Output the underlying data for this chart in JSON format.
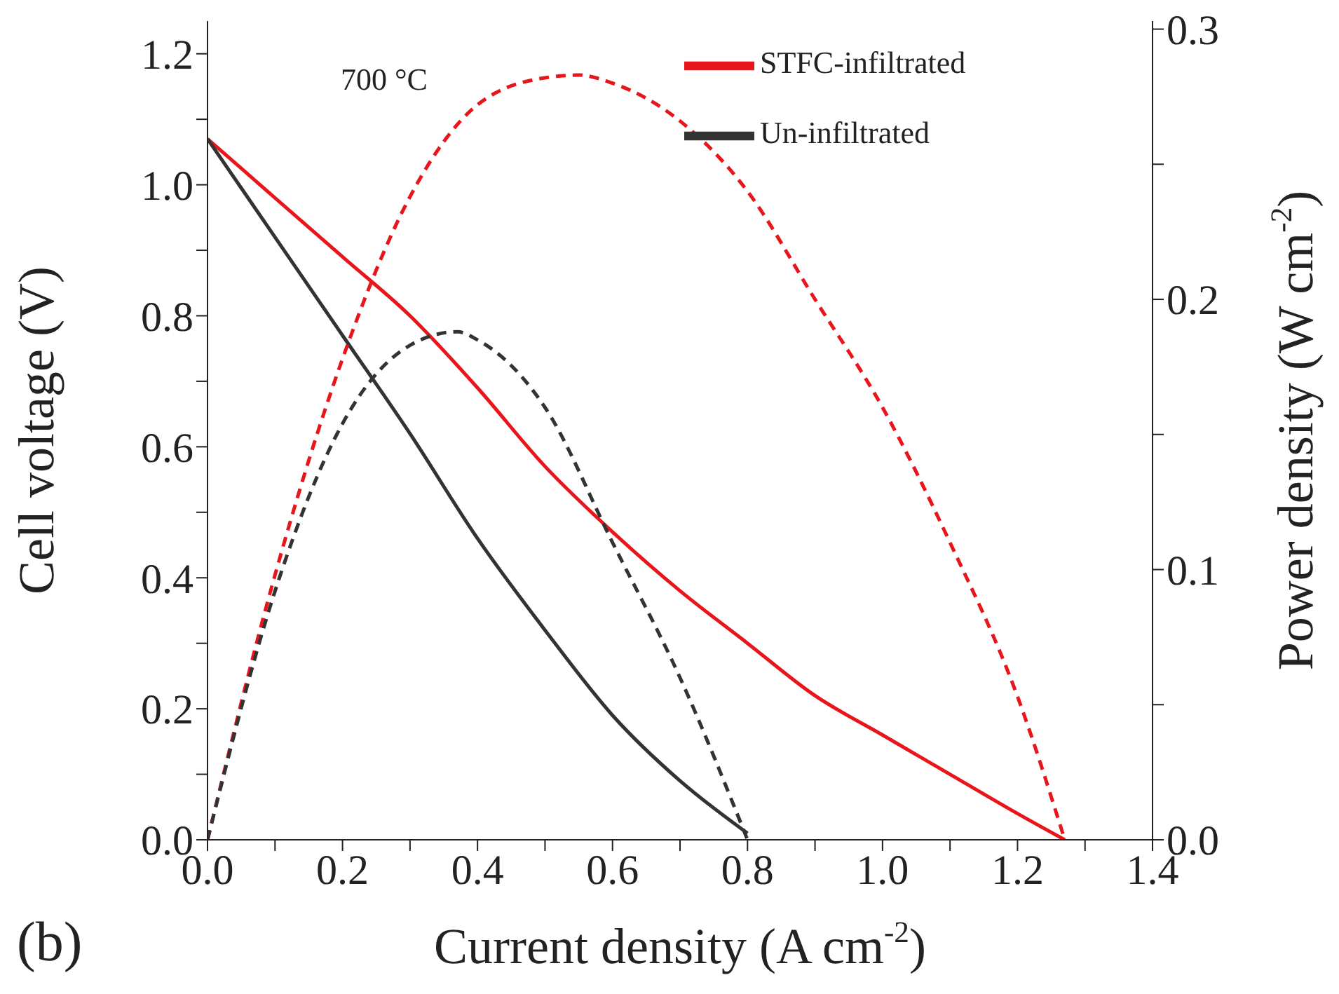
{
  "chart_data": {
    "type": "line",
    "xlabel": "Current density (A cm$^{-2}$)",
    "ylabel": "Cell voltage (V)",
    "y2label": "Power density (W cm$^{-2}$)",
    "annotations": [
      "700 °C",
      "(b)"
    ],
    "xlim": [
      0,
      1.4
    ],
    "xticks": [
      {
        "value": 0,
        "label": "0.0"
      },
      {
        "value": 0.1,
        "label": null
      },
      {
        "value": 0.2,
        "label": "0.2"
      },
      {
        "value": 0.3,
        "label": null
      },
      {
        "value": 0.4,
        "label": "0.4"
      },
      {
        "value": 0.5,
        "label": null
      },
      {
        "value": 0.6,
        "label": "0.6"
      },
      {
        "value": 0.7,
        "label": null
      },
      {
        "value": 0.8,
        "label": "0.8"
      },
      {
        "value": 0.9,
        "label": null
      },
      {
        "value": 1,
        "label": "1.0"
      },
      {
        "value": 1.1,
        "label": null
      },
      {
        "value": 1.2,
        "label": "1.2"
      },
      {
        "value": 1.3,
        "label": null
      },
      {
        "value": 1.4,
        "label": "1.4"
      }
    ],
    "ylim": [
      0,
      1.25
    ],
    "yticks": [
      {
        "value": 0,
        "label": "0.0"
      },
      {
        "value": 0.1,
        "label": null
      },
      {
        "value": 0.2,
        "label": "0.2"
      },
      {
        "value": 0.3,
        "label": null
      },
      {
        "value": 0.4,
        "label": "0.4"
      },
      {
        "value": 0.5,
        "label": null
      },
      {
        "value": 0.6,
        "label": "0.6"
      },
      {
        "value": 0.7,
        "label": null
      },
      {
        "value": 0.8,
        "label": "0.8"
      },
      {
        "value": 0.9,
        "label": null
      },
      {
        "value": 1,
        "label": "1.0"
      },
      {
        "value": 1.1,
        "label": null
      },
      {
        "value": 1.2,
        "label": "1.2"
      }
    ],
    "y2lim": [
      0,
      0.303
    ],
    "y2ticks": [
      {
        "value": 0,
        "label": "0.0"
      },
      {
        "value": 0.05,
        "label": null
      },
      {
        "value": 0.1,
        "label": "0.1"
      },
      {
        "value": 0.15,
        "label": null
      },
      {
        "value": 0.2,
        "label": "0.2"
      },
      {
        "value": 0.25,
        "label": null
      },
      {
        "value": 0.3,
        "label": "0.3"
      }
    ],
    "legend": "top right",
    "marker": "none",
    "series": [
      {
        "name": "STFC-infiltrated",
        "color": "#e8161b",
        "line_style": "solid",
        "x": [
          0,
          0.1,
          0.2,
          0.3,
          0.4,
          0.5,
          0.6,
          0.7,
          0.8,
          0.9,
          1.0,
          1.1,
          1.2,
          1.27
        ],
        "values": [
          1.07,
          0.98,
          0.89,
          0.8,
          0.69,
          0.57,
          0.47,
          0.38,
          0.3,
          0.22,
          0.16,
          0.1,
          0.04,
          0
        ]
      },
      {
        "name": "Un-infiltrated",
        "color": "#333333",
        "line_style": "solid",
        "x": [
          0,
          0.1,
          0.2,
          0.3,
          0.4,
          0.5,
          0.6,
          0.7,
          0.8
        ],
        "values": [
          1.07,
          0.92,
          0.77,
          0.62,
          0.46,
          0.32,
          0.19,
          0.09,
          0.01
        ]
      },
      {
        "color": "#e8161b",
        "line_style": "dashed",
        "axis": "y2",
        "x": [
          0,
          0.1,
          0.2,
          0.3,
          0.4,
          0.5,
          0.55,
          0.6,
          0.7,
          0.8,
          0.9,
          1.0,
          1.1,
          1.2,
          1.27
        ],
        "values": [
          0,
          0.098,
          0.178,
          0.238,
          0.272,
          0.282,
          0.283,
          0.28,
          0.266,
          0.24,
          0.2,
          0.16,
          0.11,
          0.053,
          0
        ]
      },
      {
        "color": "#333333",
        "line_style": "dashed",
        "axis": "y2",
        "x": [
          0,
          0.1,
          0.2,
          0.3,
          0.37,
          0.4,
          0.5,
          0.6,
          0.7,
          0.8
        ],
        "values": [
          0,
          0.092,
          0.154,
          0.183,
          0.188,
          0.185,
          0.16,
          0.11,
          0.06,
          0
        ]
      }
    ]
  }
}
